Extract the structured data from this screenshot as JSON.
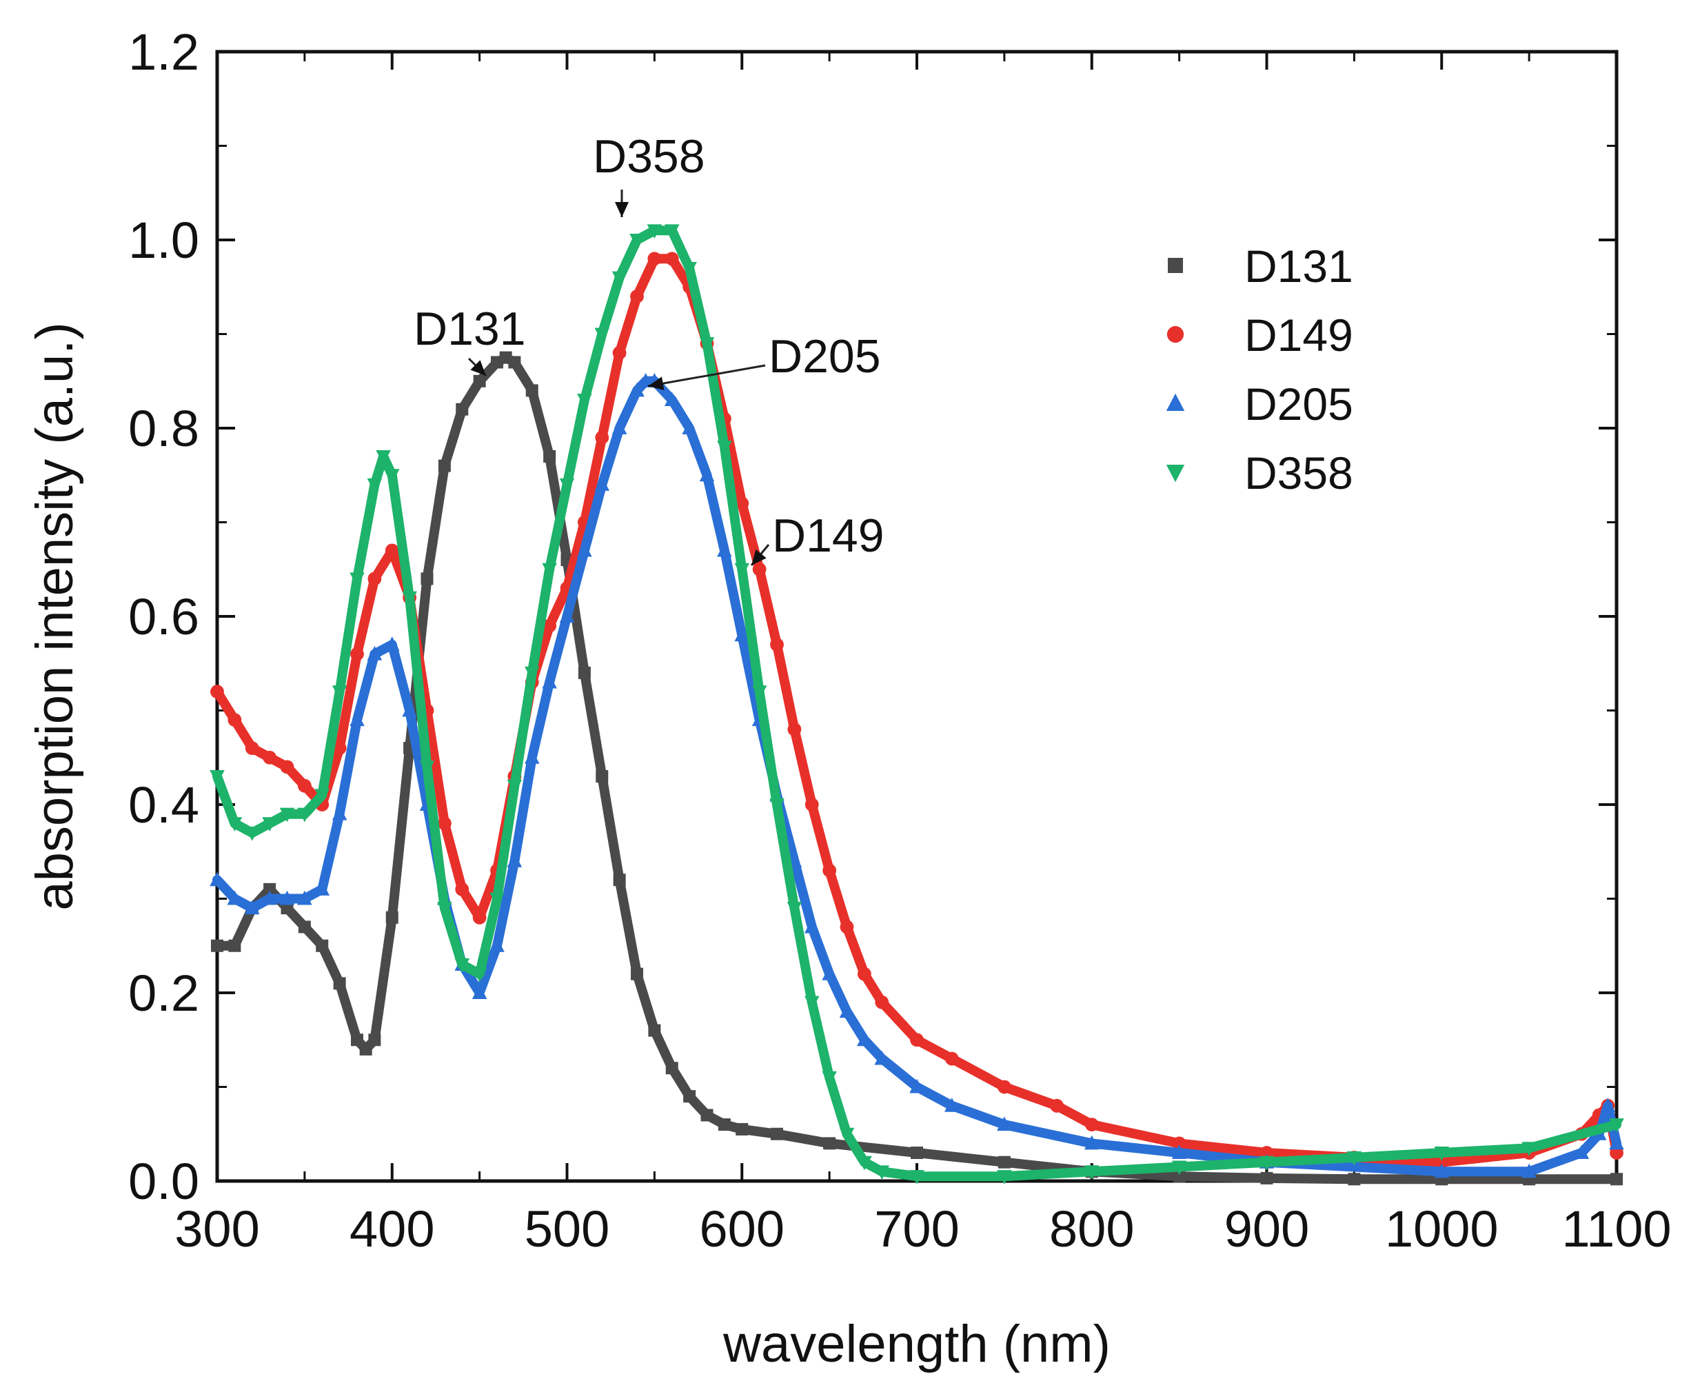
{
  "chart_data": {
    "type": "scatter",
    "title": "",
    "xlabel": "wavelength (nm)",
    "ylabel": "absorption intensity (a.u.)",
    "xlim": [
      300,
      1100
    ],
    "ylim": [
      0,
      1.2
    ],
    "xticks": [
      300,
      400,
      500,
      600,
      700,
      800,
      900,
      1000,
      1100
    ],
    "xtick_labels": [
      "300",
      "400",
      "500",
      "600",
      "700",
      "800",
      "900",
      "1000",
      "1100"
    ],
    "yticks": [
      0,
      0.2,
      0.4,
      0.6,
      0.8,
      1.0,
      1.2
    ],
    "ytick_labels": [
      "0.0",
      "0.2",
      "0.4",
      "0.6",
      "0.8",
      "1.0",
      "1.2"
    ],
    "grid": false,
    "legend_position": "top-right",
    "series": [
      {
        "name": "D131",
        "color": "#4a4a4a",
        "marker": "square",
        "x": [
          300,
          310,
          320,
          330,
          340,
          350,
          360,
          370,
          380,
          385,
          390,
          400,
          410,
          420,
          430,
          440,
          450,
          460,
          465,
          470,
          480,
          490,
          500,
          510,
          520,
          530,
          540,
          550,
          560,
          570,
          580,
          590,
          600,
          620,
          650,
          700,
          750,
          800,
          850,
          900,
          950,
          1000,
          1050,
          1100
        ],
        "y": [
          0.25,
          0.25,
          0.29,
          0.31,
          0.29,
          0.27,
          0.25,
          0.21,
          0.15,
          0.14,
          0.15,
          0.28,
          0.46,
          0.64,
          0.76,
          0.82,
          0.85,
          0.87,
          0.875,
          0.87,
          0.84,
          0.77,
          0.66,
          0.54,
          0.43,
          0.32,
          0.22,
          0.16,
          0.12,
          0.09,
          0.07,
          0.06,
          0.055,
          0.05,
          0.04,
          0.03,
          0.02,
          0.01,
          0.005,
          0.003,
          0.002,
          0.002,
          0.002,
          0.002
        ]
      },
      {
        "name": "D149",
        "color": "#e8302a",
        "marker": "circle",
        "x": [
          300,
          310,
          320,
          330,
          340,
          350,
          360,
          370,
          380,
          390,
          400,
          410,
          420,
          430,
          440,
          450,
          460,
          470,
          480,
          490,
          500,
          510,
          520,
          530,
          540,
          550,
          560,
          570,
          580,
          590,
          600,
          610,
          620,
          630,
          640,
          650,
          660,
          670,
          680,
          700,
          720,
          750,
          780,
          800,
          850,
          900,
          950,
          1000,
          1050,
          1080,
          1090,
          1095,
          1100
        ],
        "y": [
          0.52,
          0.49,
          0.46,
          0.45,
          0.44,
          0.42,
          0.4,
          0.46,
          0.56,
          0.64,
          0.67,
          0.62,
          0.5,
          0.38,
          0.31,
          0.28,
          0.33,
          0.43,
          0.53,
          0.59,
          0.63,
          0.7,
          0.79,
          0.88,
          0.94,
          0.98,
          0.98,
          0.95,
          0.89,
          0.81,
          0.72,
          0.65,
          0.57,
          0.48,
          0.4,
          0.33,
          0.27,
          0.22,
          0.19,
          0.15,
          0.13,
          0.1,
          0.08,
          0.06,
          0.04,
          0.03,
          0.025,
          0.02,
          0.03,
          0.05,
          0.07,
          0.08,
          0.03
        ]
      },
      {
        "name": "D205",
        "color": "#2a6fd6",
        "marker": "triangle-up",
        "x": [
          300,
          310,
          320,
          330,
          340,
          350,
          360,
          370,
          380,
          390,
          400,
          410,
          420,
          430,
          440,
          450,
          460,
          470,
          480,
          490,
          500,
          510,
          520,
          530,
          540,
          545,
          550,
          560,
          570,
          580,
          590,
          600,
          610,
          620,
          630,
          640,
          650,
          660,
          670,
          680,
          700,
          720,
          750,
          800,
          850,
          900,
          1000,
          1050,
          1080,
          1090,
          1095,
          1100
        ],
        "y": [
          0.32,
          0.3,
          0.29,
          0.3,
          0.3,
          0.3,
          0.31,
          0.39,
          0.49,
          0.56,
          0.57,
          0.5,
          0.4,
          0.3,
          0.23,
          0.2,
          0.25,
          0.34,
          0.45,
          0.53,
          0.6,
          0.67,
          0.74,
          0.8,
          0.84,
          0.85,
          0.85,
          0.83,
          0.8,
          0.75,
          0.67,
          0.58,
          0.49,
          0.41,
          0.34,
          0.27,
          0.22,
          0.18,
          0.15,
          0.13,
          0.1,
          0.08,
          0.06,
          0.04,
          0.03,
          0.02,
          0.01,
          0.01,
          0.03,
          0.05,
          0.08,
          0.04
        ]
      },
      {
        "name": "D358",
        "color": "#1db36a",
        "marker": "triangle-down",
        "x": [
          300,
          310,
          320,
          330,
          340,
          350,
          360,
          370,
          380,
          390,
          395,
          400,
          410,
          420,
          430,
          440,
          450,
          460,
          470,
          480,
          490,
          500,
          510,
          520,
          530,
          540,
          550,
          560,
          570,
          580,
          590,
          600,
          610,
          620,
          630,
          640,
          650,
          660,
          670,
          680,
          700,
          750,
          800,
          850,
          900,
          950,
          1000,
          1050,
          1100
        ],
        "y": [
          0.43,
          0.38,
          0.37,
          0.38,
          0.39,
          0.39,
          0.41,
          0.52,
          0.64,
          0.74,
          0.77,
          0.75,
          0.62,
          0.44,
          0.29,
          0.23,
          0.22,
          0.3,
          0.42,
          0.54,
          0.65,
          0.74,
          0.83,
          0.9,
          0.96,
          1.0,
          1.01,
          1.01,
          0.97,
          0.89,
          0.78,
          0.65,
          0.52,
          0.4,
          0.29,
          0.19,
          0.11,
          0.05,
          0.02,
          0.01,
          0.005,
          0.005,
          0.01,
          0.015,
          0.02,
          0.025,
          0.03,
          0.035,
          0.06
        ]
      }
    ],
    "annotations": [
      {
        "text": "D358",
        "point": [
          542,
          1.01
        ]
      },
      {
        "text": "D131",
        "point": [
          466,
          0.87
        ]
      },
      {
        "text": "D205",
        "point": [
          545,
          0.85
        ]
      },
      {
        "text": "D149",
        "point": [
          605,
          0.65
        ]
      }
    ]
  }
}
